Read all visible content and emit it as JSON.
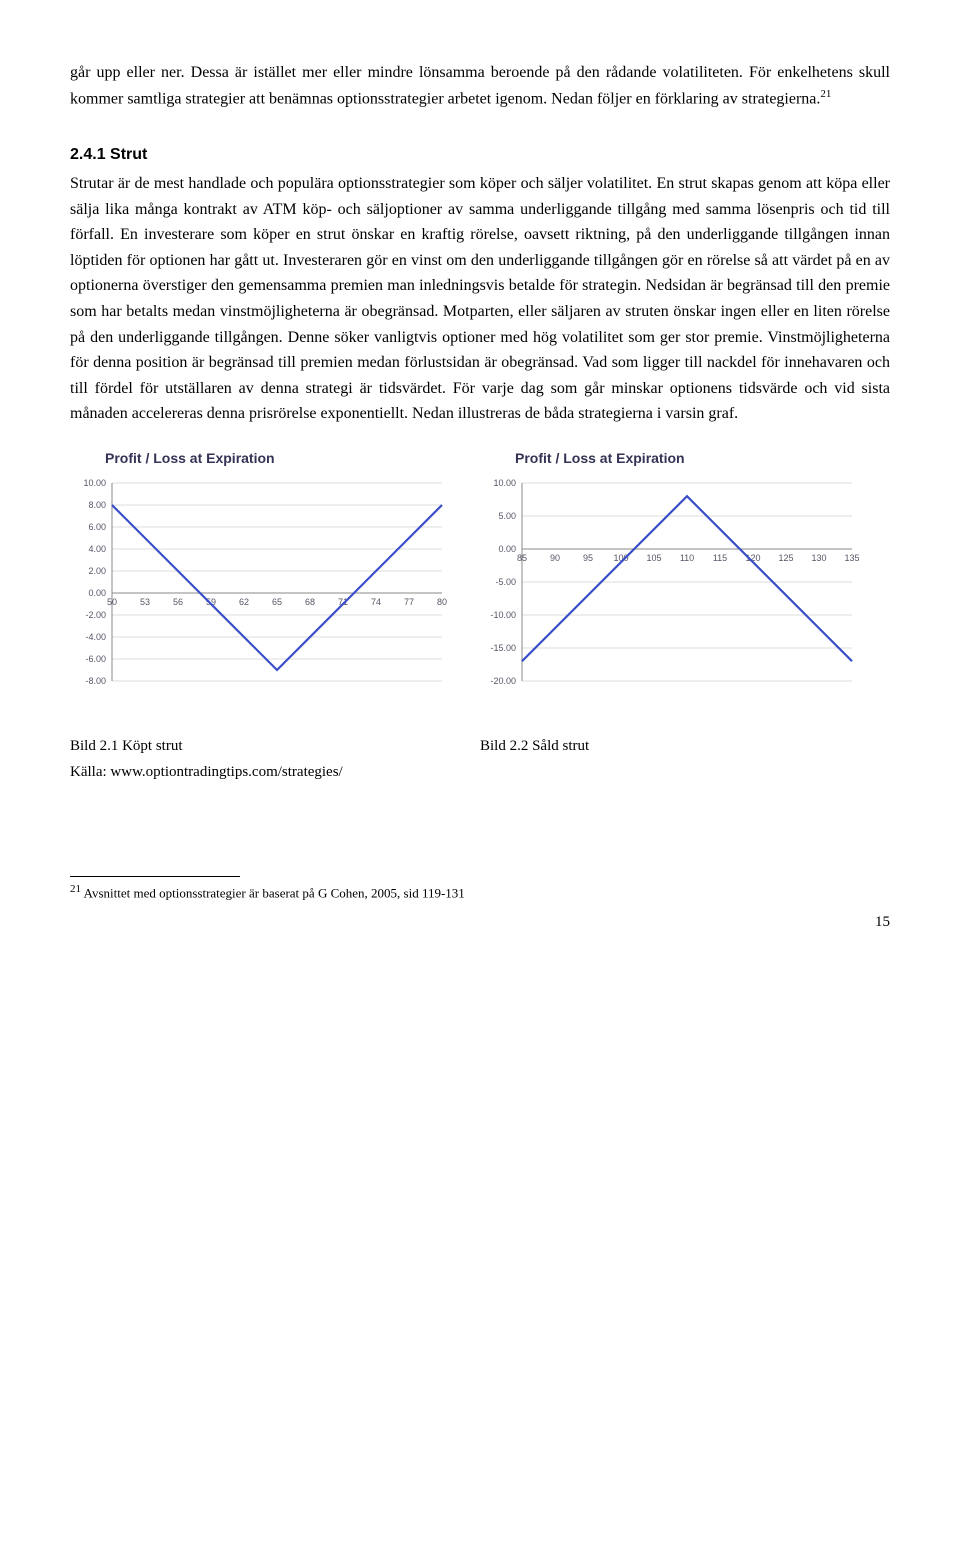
{
  "paragraph1_a": "går upp eller ner. Dessa är istället mer eller mindre lönsamma beroende på den rådande volatiliteten. För enkelhetens skull kommer samtliga strategier att benämnas optionsstrategier arbetet igenom. Nedan följer en förklaring av strategierna.",
  "sup1": "21",
  "heading": "2.4.1 Strut",
  "paragraph2": "Strutar är de mest handlade och populära optionsstrategier som köper och säljer volatilitet. En strut skapas genom att köpa eller sälja lika många kontrakt av ATM köp- och säljoptioner av samma underliggande tillgång med samma lösenpris och tid till förfall. En investerare som köper en strut önskar en kraftig rörelse, oavsett riktning, på den underliggande tillgången innan löptiden för optionen har gått ut. Investeraren gör en vinst om den underliggande tillgången gör en rörelse så att värdet på en av optionerna överstiger den gemensamma premien man inledningsvis betalde för strategin. Nedsidan är begränsad till den premie som har betalts medan vinstmöjligheterna är obegränsad. Motparten, eller säljaren av struten önskar ingen eller en liten rörelse på den underliggande tillgången. Denne söker vanligtvis optioner med hög volatilitet som ger stor premie. Vinstmöjligheterna för denna position är begränsad till premien medan förlustsidan är obegränsad. Vad som ligger till nackdel för innehavaren och till fördel för utställaren av denna strategi är tidsvärdet. För varje dag som går minskar optionens tidsvärde och vid sista månaden accelereras denna prisrörelse exponentiellt.  Nedan illustreras de båda strategierna i varsin graf.",
  "chart1": {
    "title": "Profit / Loss at Expiration",
    "xticks": [
      "50",
      "53",
      "56",
      "59",
      "62",
      "65",
      "68",
      "71",
      "74",
      "77",
      "80"
    ],
    "yticks": [
      "10.00",
      "8.00",
      "6.00",
      "4.00",
      "2.00",
      "0.00",
      "-2.00",
      "-4.00",
      "-6.00",
      "-8.00"
    ],
    "line_color": "#3a4fc7",
    "line_width": 2.2,
    "grid_color": "#dddddd",
    "axis_color": "#888888",
    "tick_font_size": 9,
    "tick_color": "#555566",
    "points": [
      {
        "xi": 0,
        "y": 8
      },
      {
        "xi": 5,
        "y": -7
      },
      {
        "xi": 10,
        "y": 8
      }
    ],
    "ylim": [
      -8,
      10
    ]
  },
  "chart2": {
    "title": "Profit / Loss at Expiration",
    "xticks": [
      "85",
      "90",
      "95",
      "100",
      "105",
      "110",
      "115",
      "120",
      "125",
      "130",
      "135"
    ],
    "yticks": [
      "10.00",
      "5.00",
      "0.00",
      "-5.00",
      "-10.00",
      "-15.00",
      "-20.00"
    ],
    "line_color": "#3a4fc7",
    "line_width": 2.2,
    "grid_color": "#dddddd",
    "axis_color": "#888888",
    "tick_font_size": 9,
    "tick_color": "#555566",
    "points": [
      {
        "xi": 0,
        "y": -17
      },
      {
        "xi": 5,
        "y": 8
      },
      {
        "xi": 10,
        "y": -17
      }
    ],
    "ylim": [
      -20,
      10
    ]
  },
  "caption_left_1": "Bild 2.1 Köpt strut",
  "caption_left_2": "Källa: www.optiontradingtips.com/strategies/",
  "caption_right": "Bild 2.2 Såld strut",
  "footnote_num": "21",
  "footnote_text": " Avsnittet med optionsstrategier är baserat på G Cohen, 2005, sid 119-131",
  "page_number": "15"
}
